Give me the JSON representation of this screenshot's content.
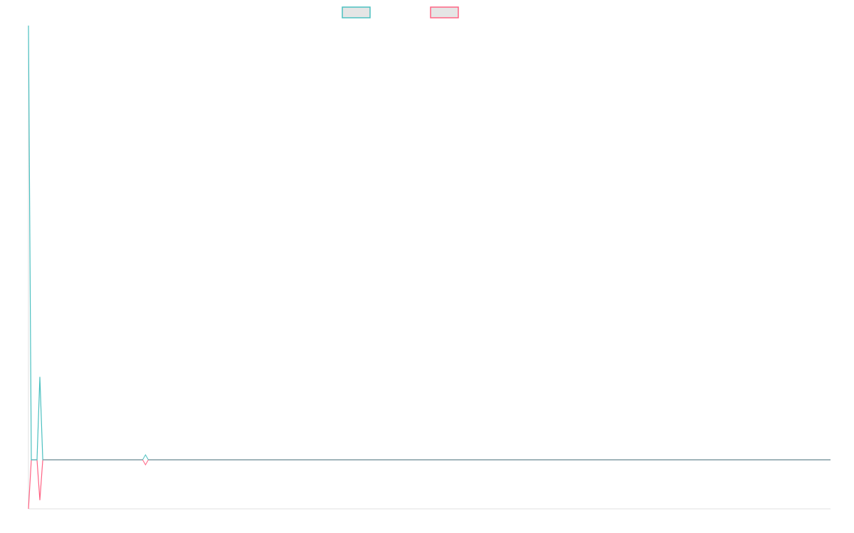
{
  "chart_data": {
    "type": "line",
    "title": "",
    "xlabel": "",
    "ylabel": "",
    "x_range": [
      0,
      281
    ],
    "ylim": [
      -11.3,
      100
    ],
    "grid": false,
    "legend_placement": "top",
    "series": [
      {
        "color": "#4bc0c0",
        "points": [
          [
            0,
            100
          ],
          [
            1,
            0
          ],
          [
            3,
            0
          ],
          [
            4,
            19.1
          ],
          [
            5,
            0
          ],
          [
            281,
            0
          ]
        ]
      },
      {
        "color": "#ff6384",
        "points": [
          [
            0,
            -11.3
          ],
          [
            1,
            0
          ],
          [
            3,
            0
          ],
          [
            4,
            -9.3
          ],
          [
            5,
            0
          ],
          [
            281,
            0
          ]
        ]
      }
    ],
    "marker": {
      "x": 41,
      "y": 0,
      "shape": "diamond"
    },
    "colors": {
      "legend_fill": "#e5e5e5",
      "axis": "#e0e0e0",
      "zero_line": "#8fa9b0"
    }
  }
}
